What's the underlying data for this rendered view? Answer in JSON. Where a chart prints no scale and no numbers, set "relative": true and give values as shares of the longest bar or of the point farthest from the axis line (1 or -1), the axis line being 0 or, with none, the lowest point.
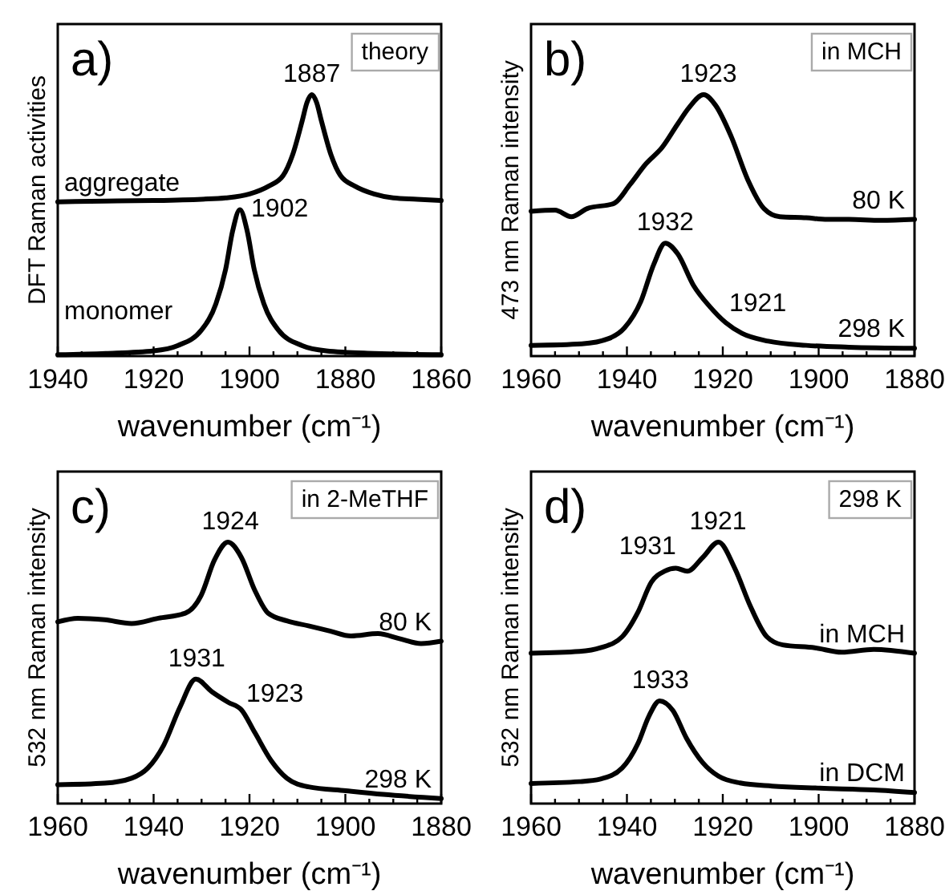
{
  "chart_data": [
    {
      "type": "line",
      "title": "a)",
      "xlabel": "wavenumber (cm⁻¹)",
      "ylabel": "DFT Raman activities",
      "relative": true,
      "xlim": [
        1940,
        1860
      ],
      "xticks": [
        1940,
        {
          "value": 1935,
          "label": null
        },
        {
          "value": 1930,
          "label": null
        },
        {
          "value": 1925,
          "label": null
        },
        1920,
        {
          "value": 1915,
          "label": null
        },
        {
          "value": 1910,
          "label": null
        },
        {
          "value": 1905,
          "label": null
        },
        1900,
        {
          "value": 1895,
          "label": null
        },
        {
          "value": 1890,
          "label": null
        },
        {
          "value": 1885,
          "label": null
        },
        1880,
        {
          "value": 1875,
          "label": null
        },
        {
          "value": 1870,
          "label": null
        },
        {
          "value": 1865,
          "label": null
        },
        1860
      ],
      "series": [
        {
          "name": "aggregate",
          "color": "#000000",
          "x": [
            1940,
            1930,
            1920,
            1910,
            1905,
            1900,
            1896,
            1893,
            1891,
            1889,
            1888,
            1887,
            1886,
            1885,
            1883,
            1881,
            1878,
            1874,
            1870,
            1865,
            1860
          ],
          "values": [
            0.59,
            0.593,
            0.595,
            0.6,
            0.605,
            0.62,
            0.65,
            0.69,
            0.77,
            0.9,
            0.97,
            1.0,
            0.97,
            0.9,
            0.77,
            0.69,
            0.65,
            0.62,
            0.605,
            0.6,
            0.595
          ]
        },
        {
          "name": "monomer",
          "color": "#000000",
          "x": [
            1940,
            1930,
            1920,
            1915,
            1910,
            1907,
            1905,
            1903.5,
            1902,
            1900.5,
            1899,
            1897,
            1894,
            1889,
            1884,
            1874,
            1860
          ],
          "values": [
            0.005,
            0.01,
            0.02,
            0.04,
            0.1,
            0.2,
            0.33,
            0.48,
            0.56,
            0.48,
            0.33,
            0.2,
            0.1,
            0.04,
            0.02,
            0.01,
            0.005
          ]
        }
      ],
      "annotations": [
        "theory",
        {
          "text": "1887",
          "x": 1887,
          "y": 1.0
        },
        {
          "text": "1902",
          "x": 1902,
          "y": 0.56
        }
      ]
    },
    {
      "type": "line",
      "title": "b)",
      "xlabel": "wavenumber (cm⁻¹)",
      "ylabel": "473 nm Raman intensity",
      "relative": true,
      "xlim": [
        1960,
        1880
      ],
      "xticks": [
        1960,
        {
          "value": 1955,
          "label": null
        },
        {
          "value": 1950,
          "label": null
        },
        {
          "value": 1945,
          "label": null
        },
        1940,
        {
          "value": 1935,
          "label": null
        },
        {
          "value": 1930,
          "label": null
        },
        {
          "value": 1925,
          "label": null
        },
        1920,
        {
          "value": 1915,
          "label": null
        },
        {
          "value": 1910,
          "label": null
        },
        {
          "value": 1905,
          "label": null
        },
        1900,
        {
          "value": 1895,
          "label": null
        },
        {
          "value": 1890,
          "label": null
        },
        {
          "value": 1885,
          "label": null
        },
        1880
      ],
      "series": [
        {
          "name": "80 K",
          "color": "#000000",
          "x": [
            1960,
            1955,
            1951.6,
            1948.3,
            1942.7,
            1939.4,
            1936,
            1932.7,
            1929.4,
            1927.1,
            1924,
            1921.5,
            1918.2,
            1914.8,
            1911.4,
            1908.1,
            1902.6,
            1898.2,
            1893.7,
            1887,
            1880
          ],
          "values": [
            0.554,
            0.558,
            0.533,
            0.564,
            0.584,
            0.655,
            0.736,
            0.797,
            0.888,
            0.949,
            1.0,
            0.959,
            0.838,
            0.675,
            0.564,
            0.533,
            0.529,
            0.523,
            0.523,
            0.519,
            0.523
          ]
        },
        {
          "name": "298 K",
          "color": "#000000",
          "x": [
            1960,
            1949.4,
            1943.8,
            1940.5,
            1937.1,
            1934.4,
            1932,
            1929.4,
            1926.1,
            1922.7,
            1919.4,
            1916,
            1910.5,
            1902.6,
            1893.7,
            1880
          ],
          "values": [
            0.041,
            0.047,
            0.067,
            0.108,
            0.209,
            0.351,
            0.432,
            0.391,
            0.27,
            0.189,
            0.128,
            0.087,
            0.057,
            0.041,
            0.034,
            0.03
          ]
        }
      ],
      "annotations": [
        "in MCH",
        {
          "text": "1923",
          "x": 1923,
          "y": 1.0
        },
        {
          "text": "1932",
          "x": 1932,
          "y": 0.432
        },
        {
          "text": "1921",
          "x": 1921,
          "y": 0.16
        }
      ]
    },
    {
      "type": "line",
      "title": "c)",
      "xlabel": "wavenumber (cm⁻¹)",
      "ylabel": "532 nm Raman intensity",
      "relative": true,
      "xlim": [
        1960,
        1880
      ],
      "xticks": [
        1960,
        {
          "value": 1955,
          "label": null
        },
        {
          "value": 1950,
          "label": null
        },
        {
          "value": 1945,
          "label": null
        },
        1940,
        {
          "value": 1935,
          "label": null
        },
        {
          "value": 1930,
          "label": null
        },
        {
          "value": 1925,
          "label": null
        },
        1920,
        {
          "value": 1915,
          "label": null
        },
        {
          "value": 1910,
          "label": null
        },
        {
          "value": 1905,
          "label": null
        },
        1900,
        {
          "value": 1895,
          "label": null
        },
        {
          "value": 1890,
          "label": null
        },
        {
          "value": 1885,
          "label": null
        },
        1880
      ],
      "series": [
        {
          "name": "80 K",
          "color": "#000000",
          "x": [
            1960,
            1955.8,
            1950.2,
            1944.6,
            1939,
            1933.4,
            1930.1,
            1927.3,
            1924.5,
            1921.7,
            1918.9,
            1916.1,
            1912.2,
            1907.7,
            1903.2,
            1898.8,
            1893.2,
            1888.7,
            1884.2,
            1880
          ],
          "values": [
            0.695,
            0.709,
            0.703,
            0.689,
            0.709,
            0.728,
            0.796,
            0.932,
            1.0,
            0.942,
            0.816,
            0.728,
            0.699,
            0.68,
            0.66,
            0.641,
            0.65,
            0.631,
            0.612,
            0.621
          ]
        },
        {
          "name": "298 K",
          "color": "#000000",
          "x": [
            1960,
            1950.2,
            1944.6,
            1941.2,
            1937.9,
            1934.5,
            1931.2,
            1927.8,
            1924.5,
            1921.7,
            1918.9,
            1915.5,
            1912.2,
            1907.7,
            1899.9,
            1892.1,
            1880
          ],
          "values": [
            0.072,
            0.078,
            0.097,
            0.136,
            0.223,
            0.369,
            0.476,
            0.427,
            0.388,
            0.359,
            0.272,
            0.165,
            0.097,
            0.064,
            0.049,
            0.035,
            0.019
          ]
        }
      ],
      "annotations": [
        "in 2-MeTHF",
        {
          "text": "1924",
          "x": 1924,
          "y": 1.0
        },
        {
          "text": "1931",
          "x": 1931,
          "y": 0.476
        },
        {
          "text": "1923",
          "x": 1923,
          "y": 0.38
        }
      ]
    },
    {
      "type": "line",
      "title": "d)",
      "xlabel": "wavenumber (cm⁻¹)",
      "ylabel": "532 nm Raman intensity",
      "relative": true,
      "xlim": [
        1960,
        1880
      ],
      "xticks": [
        1960,
        {
          "value": 1955,
          "label": null
        },
        {
          "value": 1950,
          "label": null
        },
        {
          "value": 1945,
          "label": null
        },
        1940,
        {
          "value": 1935,
          "label": null
        },
        {
          "value": 1930,
          "label": null
        },
        {
          "value": 1925,
          "label": null
        },
        1920,
        {
          "value": 1915,
          "label": null
        },
        {
          "value": 1910,
          "label": null
        },
        {
          "value": 1905,
          "label": null
        },
        1900,
        {
          "value": 1895,
          "label": null
        },
        {
          "value": 1890,
          "label": null
        },
        {
          "value": 1885,
          "label": null
        },
        1880
      ],
      "series": [
        {
          "name": "in MCH",
          "color": "#000000",
          "x": [
            1960,
            1949.9,
            1945.5,
            1941,
            1937.7,
            1934.9,
            1932.1,
            1929.8,
            1927.4,
            1924.2,
            1920.9,
            1917.5,
            1914.2,
            1910.8,
            1907.5,
            1900.8,
            1895.2,
            1888.5,
            1880
          ],
          "values": [
            0.575,
            0.582,
            0.596,
            0.638,
            0.732,
            0.847,
            0.889,
            0.9,
            0.889,
            0.941,
            1.0,
            0.9,
            0.753,
            0.638,
            0.607,
            0.596,
            0.579,
            0.59,
            0.575
          ]
        },
        {
          "name": "in DCM",
          "color": "#000000",
          "x": [
            1960,
            1949.9,
            1945.5,
            1941,
            1937.7,
            1935.4,
            1933.2,
            1930.4,
            1927.6,
            1924.2,
            1920.9,
            1916.4,
            1909.7,
            1899.7,
            1888.5,
            1880
          ],
          "values": [
            0.077,
            0.084,
            0.094,
            0.136,
            0.23,
            0.335,
            0.393,
            0.356,
            0.251,
            0.157,
            0.105,
            0.079,
            0.067,
            0.059,
            0.052,
            0.042
          ]
        }
      ],
      "annotations": [
        "298 K",
        {
          "text": "1931",
          "x": 1931,
          "y": 0.9
        },
        {
          "text": "1921",
          "x": 1921,
          "y": 1.0
        },
        {
          "text": "1933",
          "x": 1933,
          "y": 0.393
        }
      ]
    }
  ]
}
